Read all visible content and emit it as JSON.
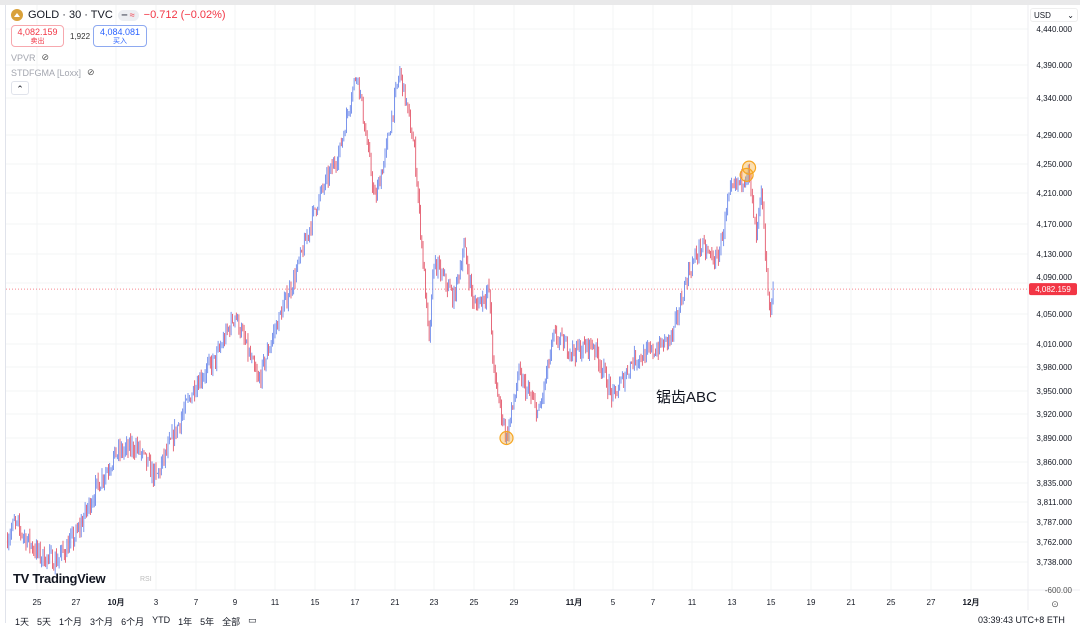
{
  "header": {
    "symbol": "GOLD · 30 · TVC",
    "change": "−0.712 (−0.02%)",
    "pill_icon": "equal-approx-icon",
    "sell_price": "4,082.159",
    "sell_label": "卖出",
    "spread": "1,922",
    "buy_price": "4,084.081",
    "buy_label": "买入",
    "indicators": [
      {
        "name": "VPVR"
      },
      {
        "name": "STDFGMA [Loxx]"
      }
    ],
    "currency": "USD"
  },
  "annotation": "锯齿ABC",
  "brand": "TradingView",
  "rsi_label": "RSI",
  "bottom": {
    "ranges": [
      "1天",
      "5天",
      "1个月",
      "3个月",
      "6个月",
      "YTD",
      "1年",
      "5年",
      "全部"
    ],
    "clock": "03:39:43 UTC+8",
    "session": "ETH"
  },
  "colors": {
    "up": "#5b7be8",
    "down": "#e0455a",
    "marker": "#f5a623",
    "last_price": "#f23645"
  },
  "chart_data": {
    "type": "candlestick",
    "interval": "30",
    "y_scale": "log",
    "grid": true,
    "y_ticks": [
      "4,440.000",
      "4,390.000",
      "4,340.000",
      "4,290.000",
      "4,250.000",
      "4,210.000",
      "4,170.000",
      "4,130.000",
      "4,090.000",
      "4,050.000",
      "4,010.000",
      "3,980.000",
      "3,950.000",
      "3,920.000",
      "3,890.000",
      "3,860.000",
      "3,835.000",
      "3,811.000",
      "3,787.000",
      "3,762.000",
      "3,738.000"
    ],
    "y_tick_values": [
      4440,
      4390,
      4340,
      4290,
      4250,
      4210,
      4170,
      4130,
      4090,
      4050,
      4010,
      3980,
      3950,
      3920,
      3890,
      3860,
      3835,
      3811,
      3787,
      3762,
      3738
    ],
    "sub_pane_tick": "-600.00",
    "x_ticks": [
      "25",
      "27",
      "10月",
      "3",
      "7",
      "9",
      "11",
      "15",
      "17",
      "21",
      "23",
      "25",
      "29",
      "11月",
      "5",
      "7",
      "11",
      "13",
      "15",
      "19",
      "21",
      "25",
      "27",
      "12月"
    ],
    "x_tick_dates": [
      "09-25",
      "09-27",
      "10-01",
      "10-03",
      "10-07",
      "10-09",
      "10-11",
      "10-15",
      "10-17",
      "10-21",
      "10-23",
      "10-25",
      "10-29",
      "11-01",
      "11-05",
      "11-07",
      "11-11",
      "11-13",
      "11-15",
      "11-19",
      "11-21",
      "11-25",
      "11-27",
      "12-01"
    ],
    "last_price": 4082.159,
    "last_price_label": "4,082.159",
    "path": [
      [
        "09-23 10:00",
        3765
      ],
      [
        "09-23 20:00",
        3785
      ],
      [
        "09-25 04:00",
        3745
      ],
      [
        "09-26 00:00",
        3740
      ],
      [
        "09-27 00:00",
        3770
      ],
      [
        "09-29 02:00",
        3830
      ],
      [
        "09-30 12:00",
        3860
      ],
      [
        "10-01 00:00",
        3870
      ],
      [
        "10-02 00:00",
        3880
      ],
      [
        "10-03 00:00",
        3840
      ],
      [
        "10-05 00:00",
        3900
      ],
      [
        "10-07 00:00",
        3960
      ],
      [
        "10-08 00:00",
        3990
      ],
      [
        "10-09 00:00",
        4050
      ],
      [
        "10-10 04:00",
        3960
      ],
      [
        "10-11 00:00",
        4030
      ],
      [
        "10-13 00:00",
        4100
      ],
      [
        "10-15 00:00",
        4190
      ],
      [
        "10-16 06:00",
        4270
      ],
      [
        "10-17 04:00",
        4380
      ],
      [
        "10-19 00:00",
        4200
      ],
      [
        "10-20 00:00",
        4260
      ],
      [
        "10-21 06:00",
        4380
      ],
      [
        "10-22 00:00",
        4270
      ],
      [
        "10-22 12:00",
        4100
      ],
      [
        "10-22 18:00",
        4010
      ],
      [
        "10-23 00:00",
        4120
      ],
      [
        "10-24 00:00",
        4070
      ],
      [
        "10-24 12:00",
        4140
      ],
      [
        "10-25 00:00",
        4060
      ],
      [
        "10-26 12:00",
        4080
      ],
      [
        "10-27 00:00",
        3970
      ],
      [
        "10-28 06:00",
        3890
      ],
      [
        "10-29 06:00",
        3970
      ],
      [
        "10-30 06:00",
        3920
      ],
      [
        "10-31 00:00",
        4020
      ],
      [
        "11-01 00:00",
        4000
      ],
      [
        "11-03 00:00",
        4010
      ],
      [
        "11-05 00:00",
        3940
      ],
      [
        "11-06 00:00",
        3990
      ],
      [
        "11-07 00:00",
        4000
      ],
      [
        "11-09 00:00",
        4020
      ],
      [
        "11-10 12:00",
        4100
      ],
      [
        "11-11 10:00",
        4140
      ],
      [
        "11-12 06:00",
        4120
      ],
      [
        "11-12 22:00",
        4210
      ],
      [
        "11-13 20:00",
        4240
      ],
      [
        "11-14 06:00",
        4150
      ],
      [
        "11-14 12:00",
        4210
      ],
      [
        "11-14 22:00",
        4050
      ],
      [
        "11-15 05:00",
        4082
      ]
    ],
    "markers": [
      [
        "10-28 06:00",
        3890
      ],
      [
        "11-13 18:00",
        4235
      ],
      [
        "11-13 21:00",
        4245
      ]
    ]
  }
}
